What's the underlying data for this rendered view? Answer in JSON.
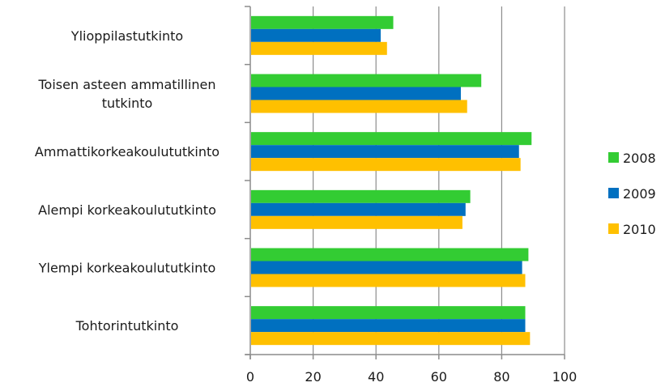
{
  "chart_data": {
    "type": "bar",
    "orientation": "horizontal",
    "title": "",
    "xlabel": "",
    "ylabel": "",
    "categories": [
      "Ylioppilastutkinto",
      "Toisen asteen ammatillinen tutkinto",
      "Ammattikorkeakoulututkinto",
      "Alempi korkeakoulututkinto",
      "Ylempi korkeakoulututkinto",
      "Tohtorintutkinto"
    ],
    "category_lines": [
      [
        "Ylioppilastutkinto"
      ],
      [
        "Toisen asteen ammatillinen",
        "tutkinto"
      ],
      [
        "Ammattikorkeakoulututkinto"
      ],
      [
        "Alempi korkeakoulututkinto"
      ],
      [
        "Ylempi korkeakoulututkinto"
      ],
      [
        "Tohtorintutkinto"
      ]
    ],
    "series": [
      {
        "name": "2008",
        "color": "#33cc33",
        "values": [
          45.5,
          73.5,
          89.5,
          70,
          88.5,
          87.5
        ]
      },
      {
        "name": "2009",
        "color": "#0070c0",
        "values": [
          41.5,
          67,
          85.5,
          68.5,
          86.5,
          87.5
        ]
      },
      {
        "name": "2010",
        "color": "#ffc000",
        "values": [
          43.5,
          69,
          86,
          67.5,
          87.5,
          89
        ]
      }
    ],
    "xlim": [
      0,
      100
    ],
    "xticks": [
      0,
      20,
      40,
      60,
      80,
      100
    ],
    "grid": true,
    "legend_position": "right"
  }
}
